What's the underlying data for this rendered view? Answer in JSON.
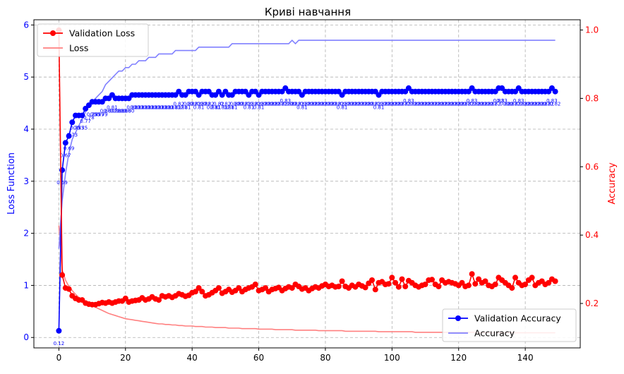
{
  "chart_data": {
    "type": "line",
    "title": "Криві навчання",
    "xlabel": "",
    "ylabel_left": "Loss Function",
    "ylabel_right": "Accuracy",
    "xlim": [
      -7.5,
      156.5
    ],
    "ylim_left": [
      -0.2,
      6.1
    ],
    "ylim_right": [
      0.07,
      1.03
    ],
    "x_ticks": [
      "0",
      "20",
      "40",
      "60",
      "80",
      "100",
      "120",
      "140"
    ],
    "y_left_ticks": [
      "0",
      "1",
      "2",
      "3",
      "4",
      "5",
      "6"
    ],
    "y_right_ticks": [
      "0.2",
      "0.4",
      "0.6",
      "0.8",
      "1.0"
    ],
    "grid": true,
    "legend_loss_position": "upper left",
    "legend_acc_position": "lower right",
    "colors": {
      "val_loss": "#ff0000",
      "loss": "#ff8080",
      "val_acc": "#0000ff",
      "acc": "#8080ff",
      "left_axis": "#0000ff",
      "right_axis": "#ff0000"
    },
    "legend_loss": [
      "Validation Loss",
      "Loss"
    ],
    "legend_acc": [
      "Validation Accuracy",
      "Accuracy"
    ],
    "epochs_start": 0,
    "epochs_count": 150,
    "val_loss": [
      5.9,
      1.2,
      0.95,
      0.93,
      0.8,
      0.75,
      0.72,
      0.72,
      0.66,
      0.64,
      0.63,
      0.63,
      0.65,
      0.67,
      0.66,
      0.68,
      0.66,
      0.68,
      0.7,
      0.7,
      0.75,
      0.68,
      0.7,
      0.71,
      0.72,
      0.76,
      0.72,
      0.74,
      0.78,
      0.74,
      0.72,
      0.8,
      0.78,
      0.8,
      0.77,
      0.8,
      0.84,
      0.82,
      0.79,
      0.81,
      0.86,
      0.88,
      0.95,
      0.88,
      0.8,
      0.82,
      0.86,
      0.9,
      0.95,
      0.85,
      0.88,
      0.92,
      0.87,
      0.9,
      0.95,
      0.88,
      0.92,
      0.95,
      0.97,
      1.02,
      0.9,
      0.92,
      0.95,
      0.88,
      0.92,
      0.94,
      0.96,
      0.9,
      0.94,
      0.97,
      0.95,
      1.02,
      0.98,
      0.93,
      0.95,
      0.9,
      0.94,
      0.97,
      0.95,
      0.99,
      1.02,
      0.98,
      1.0,
      0.97,
      0.98,
      1.08,
      0.98,
      0.95,
      1.0,
      0.97,
      1.02,
      0.99,
      0.96,
      1.04,
      1.1,
      0.92,
      1.05,
      1.07,
      1.02,
      1.03,
      1.15,
      1.05,
      0.97,
      1.12,
      0.98,
      1.09,
      1.05,
      1.0,
      0.97,
      1.0,
      1.02,
      1.1,
      1.11,
      1.02,
      0.98,
      1.1,
      1.05,
      1.07,
      1.05,
      1.03,
      1.0,
      1.05,
      0.98,
      1.0,
      1.22,
      1.03,
      1.12,
      1.05,
      1.08,
      1.0,
      0.98,
      1.02,
      1.15,
      1.1,
      1.05,
      1.0,
      0.95,
      1.15,
      1.05,
      1.0,
      1.02,
      1.1,
      1.15,
      1.0,
      1.05,
      1.08,
      1.02,
      1.05,
      1.12,
      1.08
    ],
    "loss": [
      2.15,
      1.3,
      1.1,
      0.98,
      0.9,
      0.83,
      0.77,
      0.73,
      0.69,
      0.65,
      0.61,
      0.58,
      0.55,
      0.52,
      0.49,
      0.46,
      0.44,
      0.42,
      0.4,
      0.38,
      0.36,
      0.35,
      0.34,
      0.33,
      0.32,
      0.31,
      0.3,
      0.29,
      0.28,
      0.27,
      0.26,
      0.26,
      0.25,
      0.25,
      0.24,
      0.24,
      0.23,
      0.23,
      0.22,
      0.22,
      0.22,
      0.21,
      0.21,
      0.21,
      0.2,
      0.2,
      0.2,
      0.19,
      0.19,
      0.19,
      0.19,
      0.18,
      0.18,
      0.18,
      0.18,
      0.17,
      0.17,
      0.17,
      0.17,
      0.17,
      0.16,
      0.16,
      0.16,
      0.16,
      0.16,
      0.15,
      0.15,
      0.15,
      0.15,
      0.15,
      0.15,
      0.14,
      0.14,
      0.14,
      0.14,
      0.14,
      0.14,
      0.14,
      0.13,
      0.13,
      0.13,
      0.13,
      0.13,
      0.13,
      0.13,
      0.13,
      0.12,
      0.12,
      0.12,
      0.12,
      0.12,
      0.12,
      0.12,
      0.12,
      0.12,
      0.12,
      0.11,
      0.11,
      0.11,
      0.11,
      0.11,
      0.11,
      0.11,
      0.11,
      0.11,
      0.11,
      0.11,
      0.1,
      0.1,
      0.1,
      0.1,
      0.1,
      0.1,
      0.1,
      0.1,
      0.1,
      0.1,
      0.1,
      0.1,
      0.1,
      0.1,
      0.1,
      0.1,
      0.1,
      0.1,
      0.1,
      0.09,
      0.09,
      0.09,
      0.09,
      0.09,
      0.09,
      0.09,
      0.09,
      0.09,
      0.09,
      0.09,
      0.09,
      0.09,
      0.09,
      0.09,
      0.09,
      0.09,
      0.09,
      0.09,
      0.09,
      0.09,
      0.09,
      0.09,
      0.09
    ],
    "val_acc": [
      0.12,
      0.59,
      0.67,
      0.69,
      0.73,
      0.75,
      0.75,
      0.75,
      0.77,
      0.78,
      0.79,
      0.79,
      0.79,
      0.79,
      0.8,
      0.8,
      0.81,
      0.8,
      0.8,
      0.8,
      0.8,
      0.8,
      0.81,
      0.81,
      0.81,
      0.81,
      0.81,
      0.81,
      0.81,
      0.81,
      0.81,
      0.81,
      0.81,
      0.81,
      0.81,
      0.81,
      0.82,
      0.81,
      0.81,
      0.82,
      0.82,
      0.82,
      0.81,
      0.82,
      0.82,
      0.82,
      0.81,
      0.81,
      0.82,
      0.81,
      0.82,
      0.81,
      0.81,
      0.82,
      0.82,
      0.82,
      0.82,
      0.81,
      0.82,
      0.82,
      0.81,
      0.82,
      0.82,
      0.82,
      0.82,
      0.82,
      0.82,
      0.82,
      0.83,
      0.82,
      0.82,
      0.82,
      0.82,
      0.81,
      0.82,
      0.82,
      0.82,
      0.82,
      0.82,
      0.82,
      0.82,
      0.82,
      0.82,
      0.82,
      0.82,
      0.81,
      0.82,
      0.82,
      0.82,
      0.82,
      0.82,
      0.82,
      0.82,
      0.82,
      0.82,
      0.82,
      0.81,
      0.82,
      0.82,
      0.82,
      0.82,
      0.82,
      0.82,
      0.82,
      0.82,
      0.83,
      0.82,
      0.82,
      0.82,
      0.82,
      0.82,
      0.82,
      0.82,
      0.82,
      0.82,
      0.82,
      0.82,
      0.82,
      0.82,
      0.82,
      0.82,
      0.82,
      0.82,
      0.82,
      0.83,
      0.82,
      0.82,
      0.82,
      0.82,
      0.82,
      0.82,
      0.82,
      0.83,
      0.83,
      0.82,
      0.82,
      0.82,
      0.82,
      0.83,
      0.82,
      0.82,
      0.82,
      0.82,
      0.82,
      0.82,
      0.82,
      0.82,
      0.82,
      0.83,
      0.82
    ],
    "acc": [
      0.36,
      0.5,
      0.58,
      0.64,
      0.68,
      0.7,
      0.72,
      0.74,
      0.76,
      0.78,
      0.79,
      0.8,
      0.81,
      0.82,
      0.84,
      0.85,
      0.86,
      0.87,
      0.88,
      0.88,
      0.89,
      0.89,
      0.9,
      0.9,
      0.91,
      0.91,
      0.91,
      0.92,
      0.92,
      0.92,
      0.93,
      0.93,
      0.93,
      0.93,
      0.93,
      0.94,
      0.94,
      0.94,
      0.94,
      0.94,
      0.94,
      0.94,
      0.95,
      0.95,
      0.95,
      0.95,
      0.95,
      0.95,
      0.95,
      0.95,
      0.95,
      0.95,
      0.96,
      0.96,
      0.96,
      0.96,
      0.96,
      0.96,
      0.96,
      0.96,
      0.96,
      0.96,
      0.96,
      0.96,
      0.96,
      0.96,
      0.96,
      0.96,
      0.96,
      0.96,
      0.97,
      0.96,
      0.97,
      0.97,
      0.97,
      0.97,
      0.97,
      0.97,
      0.97,
      0.97,
      0.97,
      0.97,
      0.97,
      0.97,
      0.97,
      0.97,
      0.97,
      0.97,
      0.97,
      0.97,
      0.97,
      0.97,
      0.97,
      0.97,
      0.97,
      0.97,
      0.97,
      0.97,
      0.97,
      0.97,
      0.97,
      0.97,
      0.97,
      0.97,
      0.97,
      0.97,
      0.97,
      0.97,
      0.97,
      0.97,
      0.97,
      0.97,
      0.97,
      0.97,
      0.97,
      0.97,
      0.97,
      0.97,
      0.97,
      0.97,
      0.97,
      0.97,
      0.97,
      0.97,
      0.97,
      0.97,
      0.97,
      0.97,
      0.97,
      0.97,
      0.97,
      0.97,
      0.97,
      0.97,
      0.97,
      0.97,
      0.97,
      0.97,
      0.97,
      0.97,
      0.97,
      0.97,
      0.97,
      0.97,
      0.97,
      0.97,
      0.97,
      0.97,
      0.97,
      0.97
    ]
  }
}
